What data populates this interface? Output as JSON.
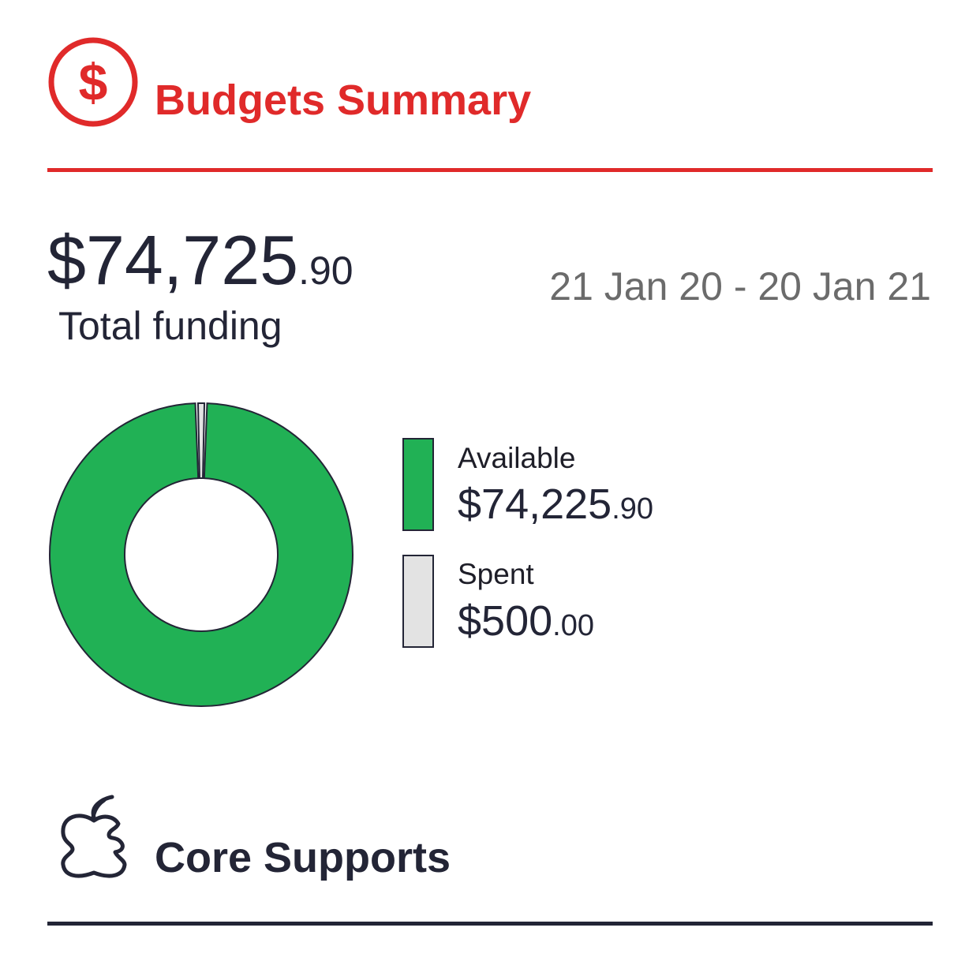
{
  "colors": {
    "accent": "#e02a2a",
    "text_dark": "#232536",
    "text_muted": "#6b6b6b",
    "available": "#21b155",
    "spent": "#e3e3e3"
  },
  "header": {
    "icon": "dollar-circle-icon",
    "title": "Budgets Summary"
  },
  "summary": {
    "total_main": "$74,725",
    "total_cents": ".90",
    "total_label": "Total funding",
    "date_range": "21 Jan 20 - 20 Jan 21"
  },
  "chart_data": {
    "type": "pie",
    "style": "donut",
    "slices": [
      {
        "label": "Available",
        "value": 74225.9,
        "color": "#21b155"
      },
      {
        "label": "Spent",
        "value": 500.0,
        "color": "#e3e3e3"
      }
    ]
  },
  "legend": [
    {
      "label": "Available",
      "value_main": "$74,225",
      "value_cents": ".90",
      "color": "#21b155"
    },
    {
      "label": "Spent",
      "value_main": "$500",
      "value_cents": ".00",
      "color": "#e3e3e3"
    }
  ],
  "section": {
    "icon": "apple-icon",
    "title": "Core Supports"
  }
}
